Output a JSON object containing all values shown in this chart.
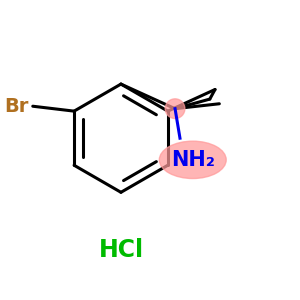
{
  "bg_color": "#ffffff",
  "line_color": "#000000",
  "br_color": "#b07020",
  "nh2_color": "#0000ee",
  "hcl_color": "#00bb00",
  "highlight_color": "#ff9999",
  "highlight_alpha": 0.72,
  "line_width": 2.2,
  "fig_size": [
    3.0,
    3.0
  ],
  "dpi": 100,
  "br_label": "Br",
  "br_font_size": 14,
  "nh2_label": "NH₂",
  "nh2_font_size": 15,
  "hcl_label": "HCl",
  "hcl_font_size": 17
}
